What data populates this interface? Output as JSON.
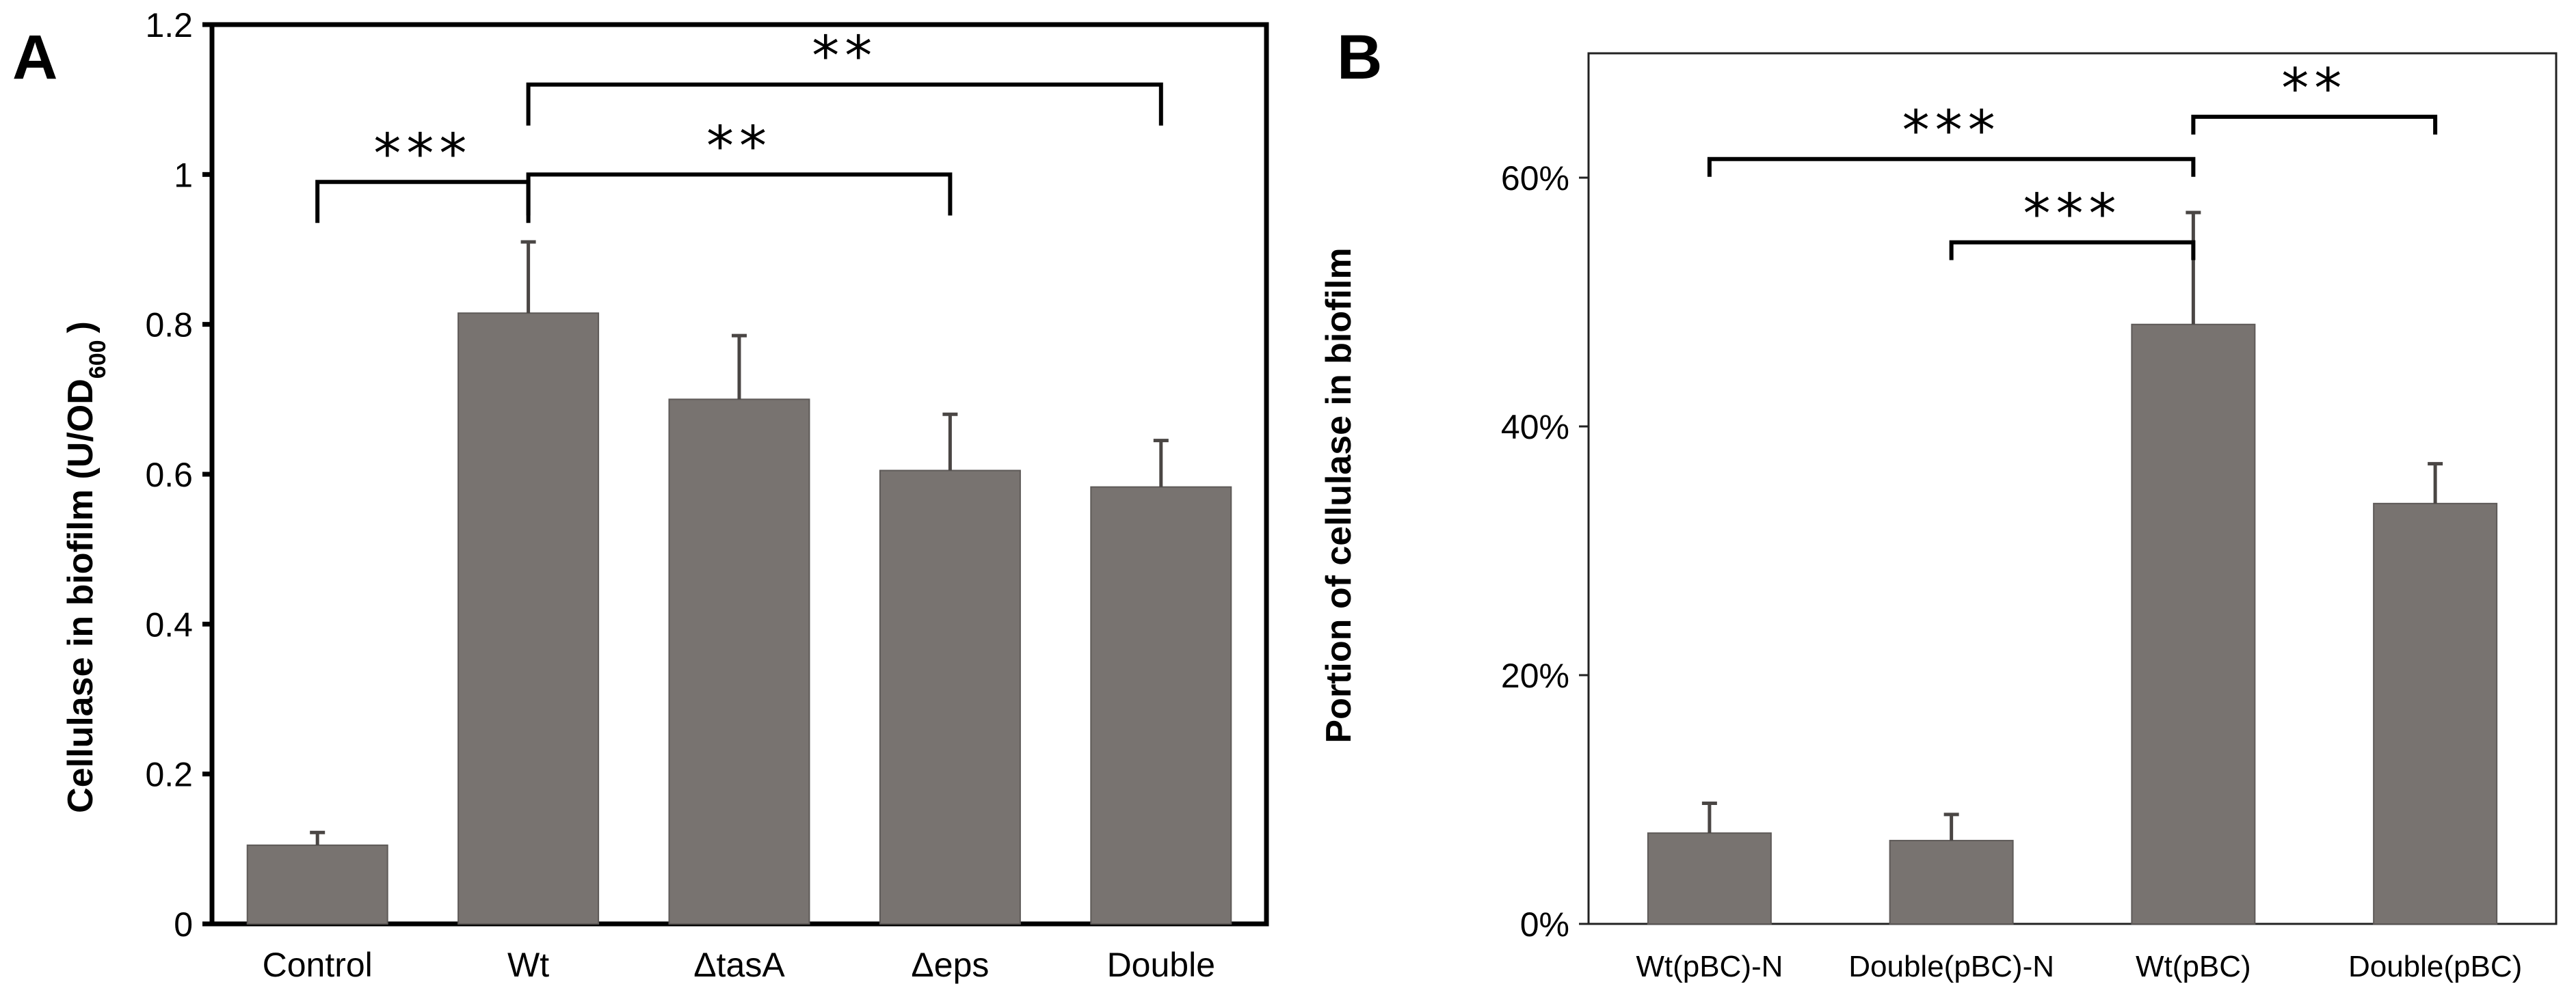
{
  "chart_data": [
    {
      "panel": "A",
      "type": "bar",
      "title": "",
      "xlabel": "",
      "ylabel": "Cellulase in biofilm (U/OD",
      "ylabel_subscript": "600",
      "ylabel_close": ")",
      "ylim": [
        0,
        1.2
      ],
      "ytick_values": [
        0,
        0.2,
        0.4,
        0.6,
        0.8,
        1,
        1.2
      ],
      "ytick_labels": [
        "0",
        "0.2",
        "0.4",
        "0.6",
        "0.8",
        "1",
        "1.2"
      ],
      "categories": [
        "Control",
        "Wt",
        "ΔtasA",
        "Δeps",
        "Double"
      ],
      "values": [
        0.105,
        0.815,
        0.7,
        0.605,
        0.583
      ],
      "errors": [
        0.017,
        0.095,
        0.085,
        0.075,
        0.062
      ],
      "annotations": [
        {
          "label": "***",
          "from": 0,
          "to": 1,
          "level": 0.99
        },
        {
          "label": "**",
          "from": 1,
          "to": 3,
          "level": 1.0
        },
        {
          "label": "**",
          "from": 1,
          "to": 4,
          "level": 1.12
        }
      ]
    },
    {
      "panel": "B",
      "type": "bar",
      "title": "",
      "xlabel": "",
      "ylabel": "Portion of cellulase in biofilm",
      "ylim": [
        0,
        0.7
      ],
      "ytick_values": [
        0,
        0.2,
        0.4,
        0.6
      ],
      "ytick_labels": [
        "0%",
        "20%",
        "40%",
        "60%"
      ],
      "categories": [
        "Wt(pBC)-N",
        "Double(pBC)-N",
        "Wt(pBC)",
        "Double(pBC)"
      ],
      "values": [
        0.073,
        0.067,
        0.482,
        0.338
      ],
      "errors": [
        0.024,
        0.021,
        0.09,
        0.032
      ],
      "annotations": [
        {
          "label": "***",
          "from": 0,
          "to": 2,
          "level": 0.615
        },
        {
          "label": "***",
          "from": 1,
          "to": 2,
          "level": 0.548
        },
        {
          "label": "**",
          "from": 2,
          "to": 3,
          "level": 0.649
        }
      ]
    }
  ]
}
